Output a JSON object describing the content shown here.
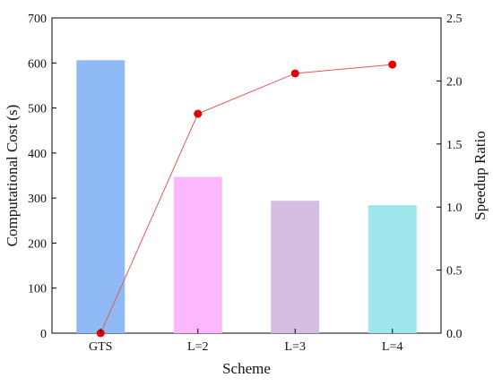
{
  "chart_data": {
    "type": "bar",
    "title": "",
    "categories": [
      "GTS",
      "L=2",
      "L=3",
      "L=4"
    ],
    "xlabel": "Scheme",
    "grid": false,
    "legend": "none",
    "series": [
      {
        "kind": "bar",
        "axis": "left",
        "values": [
          606,
          347,
          294,
          284
        ],
        "colors": [
          "#8fbaf5",
          "#fdb8fd",
          "#d4bde0",
          "#9ee6ec"
        ]
      },
      {
        "kind": "line",
        "axis": "right",
        "values": [
          0.0,
          1.74,
          2.06,
          2.13
        ],
        "line_color": "#e05a5a",
        "marker_color": "#e60000"
      }
    ],
    "y_left": {
      "label": "Computational Cost (s)",
      "range": [
        0,
        700
      ],
      "ticks": [
        0,
        100,
        200,
        300,
        400,
        500,
        600,
        700
      ],
      "tick_labels": [
        "0",
        "100",
        "200",
        "300",
        "400",
        "500",
        "600",
        "700"
      ]
    },
    "y_right": {
      "label": "Speedup Ratio",
      "range": [
        0,
        2.5
      ],
      "ticks": [
        0,
        0.5,
        1,
        1.5,
        2,
        2.5
      ],
      "tick_labels": [
        "0.0",
        "0.5",
        "1.0",
        "1.5",
        "2.0",
        "2.5"
      ]
    }
  }
}
